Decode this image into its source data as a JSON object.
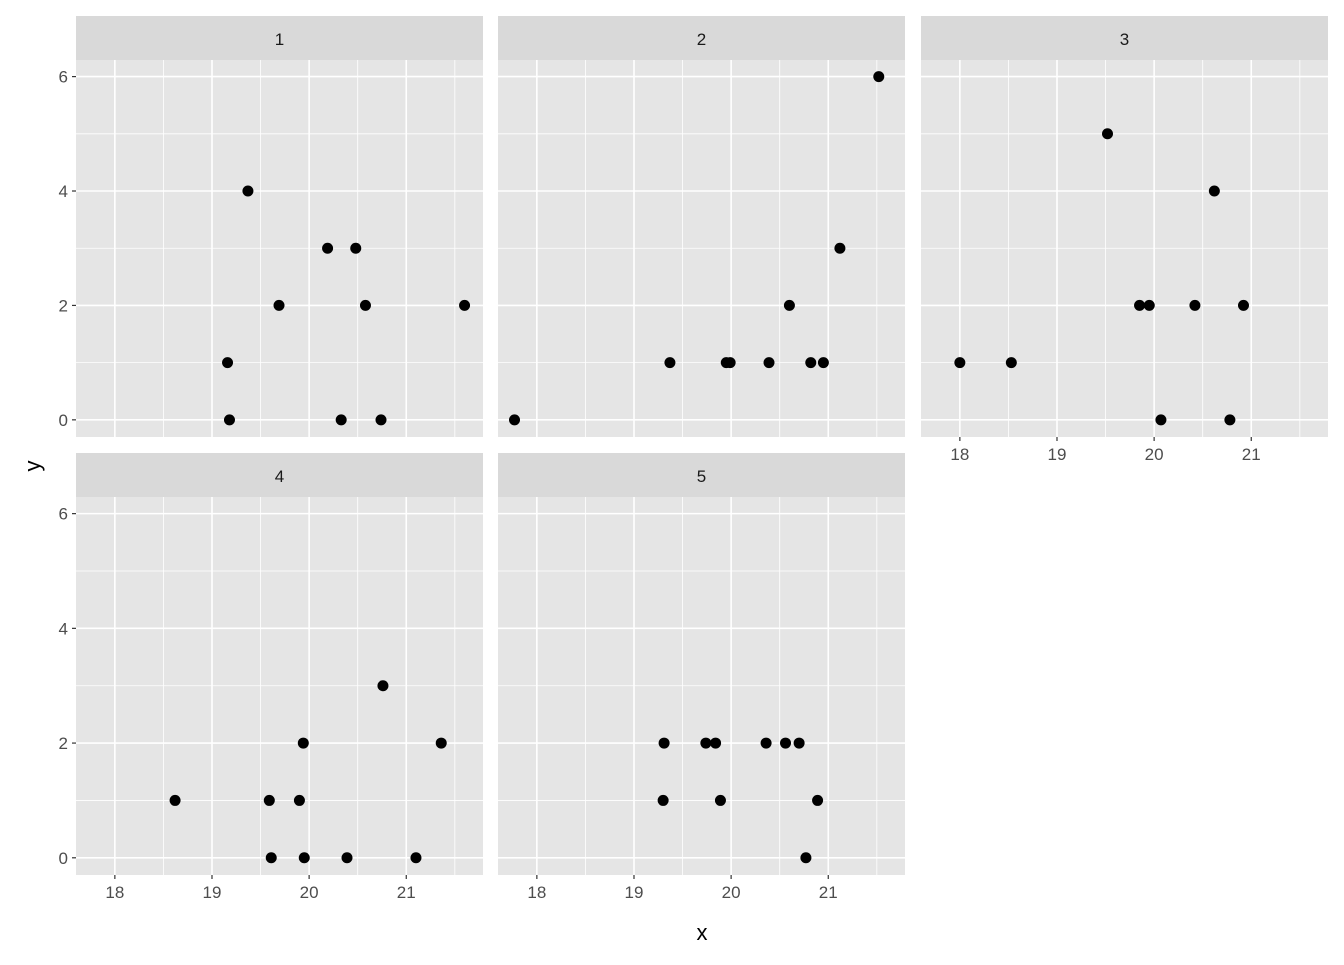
{
  "chart_data": {
    "type": "scatter",
    "faceted": true,
    "xlabel": "x",
    "ylabel": "y",
    "xlim": [
      17.6,
      21.79
    ],
    "ylim": [
      -0.3,
      6.29
    ],
    "x_ticks": [
      18,
      19,
      20,
      21
    ],
    "y_ticks": [
      0,
      2,
      4,
      6
    ],
    "grid": true,
    "colors": {
      "panel_bg": "#E5E5E5",
      "strip_bg": "#D9D9D9",
      "point": "#000000",
      "grid": "#FFFFFF"
    },
    "panels": [
      {
        "label": "1",
        "points": [
          [
            19.16,
            1
          ],
          [
            19.18,
            0
          ],
          [
            19.37,
            4
          ],
          [
            19.69,
            2
          ],
          [
            20.19,
            3
          ],
          [
            20.48,
            3
          ],
          [
            20.33,
            0
          ],
          [
            20.58,
            2
          ],
          [
            20.74,
            0
          ],
          [
            21.6,
            2
          ]
        ]
      },
      {
        "label": "2",
        "points": [
          [
            17.77,
            0
          ],
          [
            19.37,
            1
          ],
          [
            19.95,
            1
          ],
          [
            19.99,
            1
          ],
          [
            20.39,
            1
          ],
          [
            20.6,
            2
          ],
          [
            20.82,
            1
          ],
          [
            20.95,
            1
          ],
          [
            21.12,
            3
          ],
          [
            21.52,
            6
          ]
        ]
      },
      {
        "label": "3",
        "points": [
          [
            18.0,
            1
          ],
          [
            18.53,
            1
          ],
          [
            19.52,
            5
          ],
          [
            19.85,
            2
          ],
          [
            19.95,
            2
          ],
          [
            20.07,
            0
          ],
          [
            20.42,
            2
          ],
          [
            20.62,
            4
          ],
          [
            20.78,
            0
          ],
          [
            20.92,
            2
          ]
        ]
      },
      {
        "label": "4",
        "points": [
          [
            18.62,
            1
          ],
          [
            19.59,
            1
          ],
          [
            19.61,
            0
          ],
          [
            19.9,
            1
          ],
          [
            19.94,
            2
          ],
          [
            19.95,
            0
          ],
          [
            20.39,
            0
          ],
          [
            20.76,
            3
          ],
          [
            21.1,
            0
          ],
          [
            21.36,
            2
          ]
        ]
      },
      {
        "label": "5",
        "points": [
          [
            19.31,
            2
          ],
          [
            19.3,
            1
          ],
          [
            19.74,
            2
          ],
          [
            19.84,
            2
          ],
          [
            19.89,
            1
          ],
          [
            20.36,
            2
          ],
          [
            20.56,
            2
          ],
          [
            20.7,
            2
          ],
          [
            20.89,
            1
          ],
          [
            20.77,
            0
          ]
        ]
      }
    ]
  }
}
